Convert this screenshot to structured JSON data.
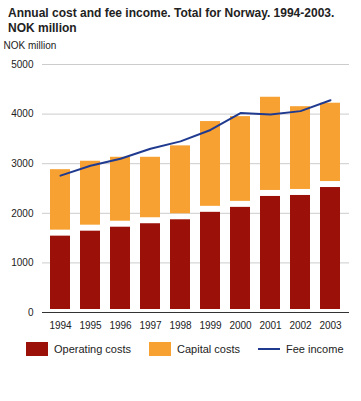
{
  "chart_data": {
    "type": "bar",
    "title": "Annual cost and fee income. Total for Norway. 1994-2003. NOK million",
    "y_label": "NOK million",
    "categories": [
      "1994",
      "1995",
      "1996",
      "1997",
      "1998",
      "1999",
      "2000",
      "2001",
      "2002",
      "2003"
    ],
    "series": [
      {
        "name": "Operating costs",
        "type": "bar",
        "color": "#9b1109",
        "values": [
          1600,
          1700,
          1780,
          1850,
          1930,
          2080,
          2180,
          2400,
          2420,
          2580
        ]
      },
      {
        "name": "Capital costs",
        "type": "bar",
        "color": "#f7a133",
        "values": [
          1340,
          1410,
          1410,
          1340,
          1490,
          1830,
          1830,
          2000,
          1790,
          1700
        ]
      },
      {
        "name": "Fee income",
        "type": "line",
        "color": "#1f3a8f",
        "values": [
          2760,
          2960,
          3100,
          3300,
          3450,
          3680,
          4020,
          3990,
          4060,
          4280
        ]
      }
    ],
    "stacked": true,
    "ylim": [
      0,
      5000
    ],
    "yticks": [
      0,
      1000,
      2000,
      3000,
      4000,
      5000
    ],
    "grid": true,
    "legend": "bottom"
  }
}
